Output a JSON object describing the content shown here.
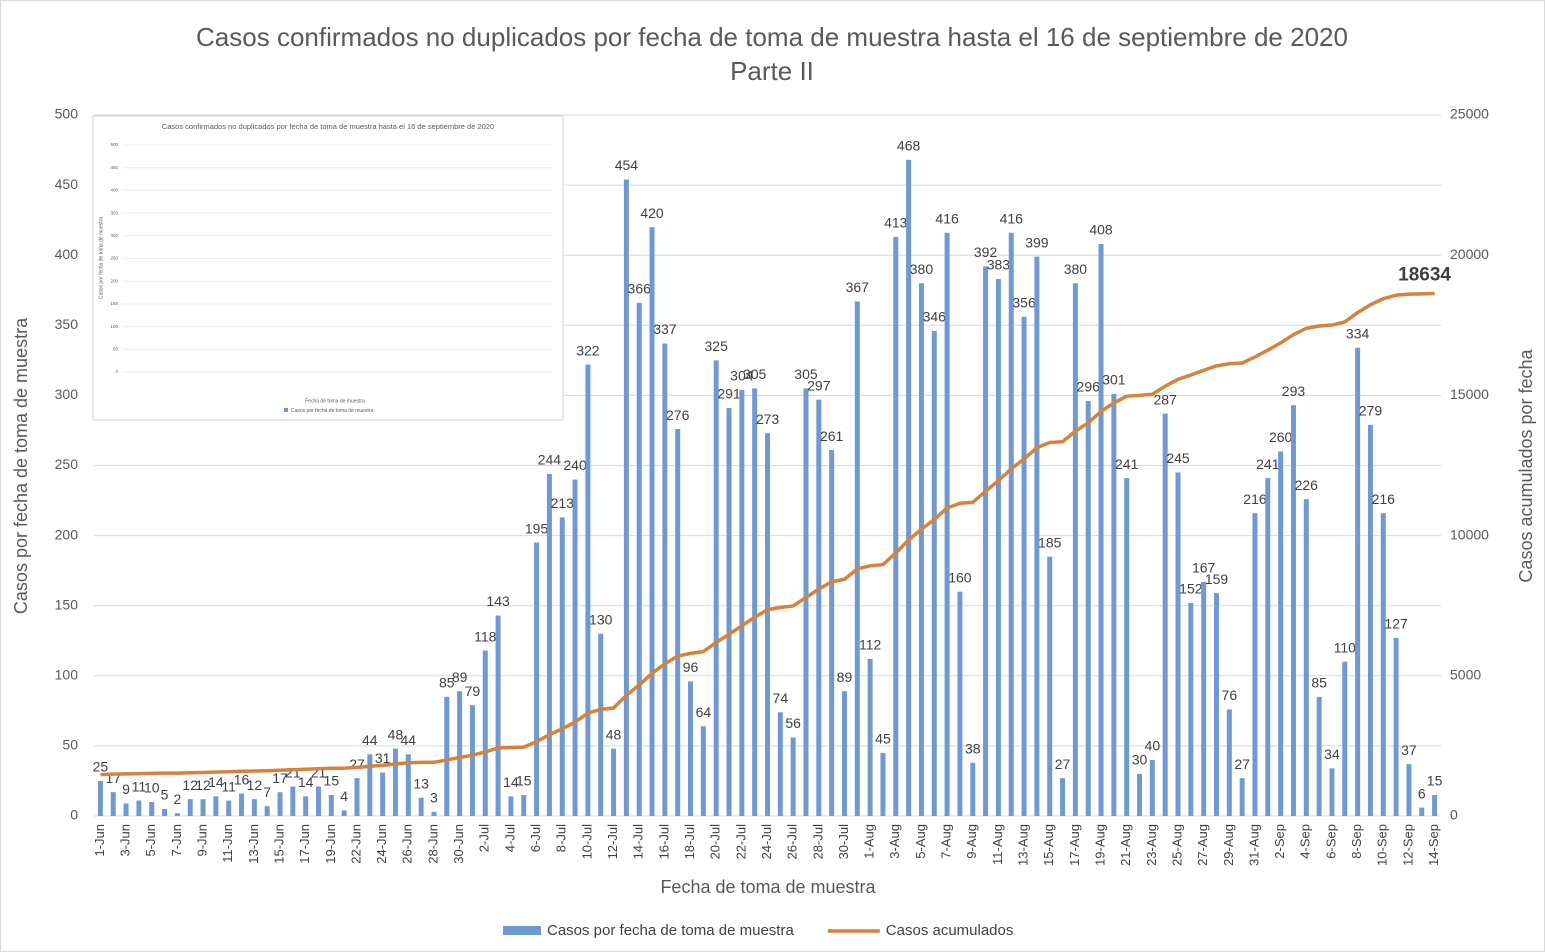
{
  "chart_data": {
    "type": "bar",
    "title": "Casos confirmados no duplicados por fecha de toma de muestra hasta el 16 de septiembre de 2020",
    "subtitle": "Parte II",
    "x_label": "Fecha de toma de muestra",
    "y_label": "Casos por fecha de toma de muestra",
    "y2_label": "Casos acumulados por fecha",
    "categories": [
      "1-Jun",
      null,
      "3-Jun",
      null,
      "5-Jun",
      null,
      "7-Jun",
      null,
      "9-Jun",
      null,
      "11-Jun",
      null,
      "13-Jun",
      null,
      "15-Jun",
      null,
      "17-Jun",
      null,
      "19-Jun",
      null,
      "22-Jun",
      null,
      "24-Jun",
      null,
      "26-Jun",
      null,
      "28-Jun",
      null,
      "30-Jun",
      null,
      "2-Jul",
      null,
      "4-Jul",
      null,
      "6-Jul",
      null,
      "8-Jul",
      null,
      "10-Jul",
      null,
      "12-Jul",
      null,
      "14-Jul",
      null,
      "16-Jul",
      null,
      "18-Jul",
      null,
      "20-Jul",
      null,
      "22-Jul",
      null,
      "24-Jul",
      null,
      "26-Jul",
      null,
      "28-Jul",
      null,
      "30-Jul",
      null,
      "1-Aug",
      null,
      "3-Aug",
      null,
      "5-Aug",
      null,
      "7-Aug",
      null,
      "9-Aug",
      null,
      "11-Aug",
      null,
      "13-Aug",
      null,
      "15-Aug",
      null,
      "17-Aug",
      null,
      "19-Aug",
      null,
      "21-Aug",
      null,
      "23-Aug",
      null,
      "25-Aug",
      null,
      "27-Aug",
      null,
      "29-Aug",
      null,
      "31-Aug",
      null,
      "2-Sep",
      null,
      "4-Sep",
      null,
      "6-Sep",
      null,
      "8-Sep",
      null,
      "10-Sep",
      null,
      "12-Sep",
      null,
      "14-Sep"
    ],
    "series": [
      {
        "name": "Casos por fecha de toma de muestra",
        "type": "bar",
        "color": "#7099d1",
        "data_labels": "all",
        "values": [
          25,
          17,
          9,
          11,
          10,
          5,
          2,
          12,
          12,
          14,
          11,
          16,
          12,
          7,
          17,
          21,
          14,
          21,
          15,
          4,
          27,
          44,
          31,
          48,
          44,
          13,
          3,
          85,
          89,
          79,
          118,
          143,
          14,
          15,
          195,
          244,
          213,
          240,
          322,
          130,
          48,
          454,
          366,
          420,
          337,
          276,
          96,
          64,
          325,
          291,
          304,
          305,
          273,
          74,
          56,
          305,
          297,
          261,
          89,
          367,
          112,
          45,
          413,
          468,
          380,
          346,
          416,
          160,
          38,
          392,
          383,
          416,
          356,
          399,
          185,
          27,
          380,
          296,
          408,
          301,
          241,
          30,
          40,
          287,
          245,
          152,
          167,
          159,
          76,
          27,
          216,
          241,
          260,
          293,
          226,
          85,
          34,
          110,
          334,
          279,
          216,
          127,
          37,
          6,
          15
        ]
      },
      {
        "name": "Casos acumulados",
        "type": "line",
        "axis": "y2",
        "color": "#d5823e",
        "data_labels": "last",
        "values": [
          1475,
          1492,
          1501,
          1512,
          1522,
          1527,
          1529,
          1541,
          1553,
          1567,
          1578,
          1594,
          1606,
          1613,
          1630,
          1651,
          1665,
          1686,
          1701,
          1705,
          1732,
          1776,
          1807,
          1855,
          1899,
          1912,
          1915,
          2000,
          2089,
          2168,
          2286,
          2429,
          2443,
          2458,
          2653,
          2897,
          3110,
          3350,
          3672,
          3802,
          3850,
          4304,
          4670,
          5090,
          5427,
          5703,
          5799,
          5863,
          6188,
          6479,
          6783,
          7088,
          7361,
          7435,
          7491,
          7796,
          8093,
          8354,
          8443,
          8810,
          8922,
          8967,
          9380,
          9848,
          10228,
          10574,
          10990,
          11150,
          11188,
          11580,
          11963,
          12379,
          12735,
          13134,
          13319,
          13346,
          13726,
          14022,
          14430,
          14731,
          14972,
          15002,
          15042,
          15329,
          15574,
          15726,
          15893,
          16052,
          16128,
          16155,
          16371,
          16612,
          16872,
          17165,
          17391,
          17476,
          17510,
          17620,
          17954,
          18233,
          18449,
          18576,
          18613,
          18619,
          18634
        ]
      }
    ],
    "ylim": [
      0,
      500
    ],
    "yticks": [
      0,
      50,
      100,
      150,
      200,
      250,
      300,
      350,
      400,
      450,
      500
    ],
    "y2lim": [
      0,
      25000
    ],
    "y2ticks": [
      0,
      5000,
      10000,
      15000,
      20000,
      25000
    ],
    "grid": true,
    "legend": "bottom"
  },
  "inset": {
    "title": "Casos confirmados no duplicados por fecha de toma de muestra hasta el 16 de septiembre de 2020",
    "y_label": "Casos por fecha de toma de muestra",
    "x_label": "Fecha de toma de muestra",
    "legend": "Casos por fecha de toma de muestra",
    "yticks": [
      0,
      50,
      100,
      150,
      200,
      250,
      300,
      350,
      400,
      450,
      500
    ]
  }
}
